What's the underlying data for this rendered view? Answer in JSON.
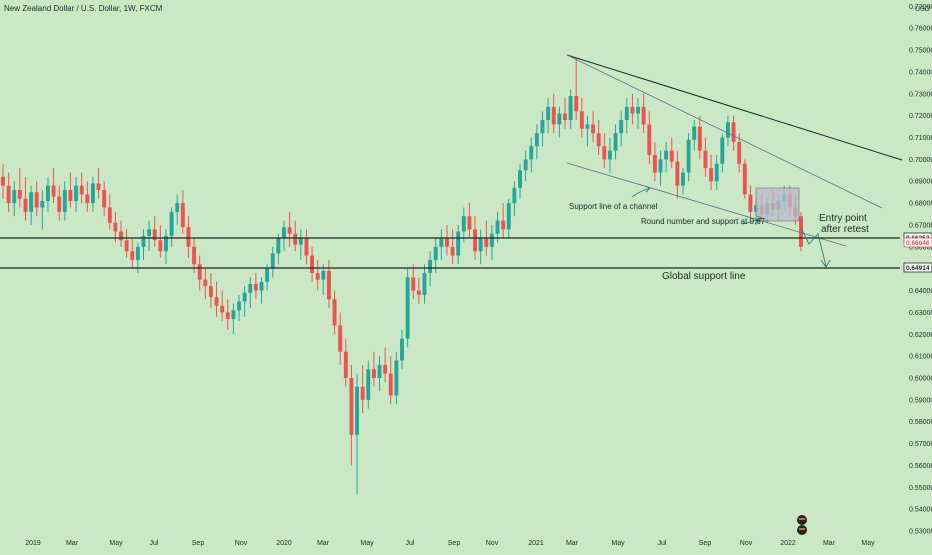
{
  "header": {
    "title": "New Zealand Dollar / U.S. Dollar, 1W, FXCM"
  },
  "colors": {
    "background": "#cbe8c6",
    "up": "#26a69a",
    "down": "#ef5350",
    "line": "#1b2a1f",
    "label_bg": "#ffffff"
  },
  "chart_data": {
    "type": "candlestick",
    "title": "New Zealand Dollar / U.S. Dollar, 1W, FXCM",
    "y_unit": "USD",
    "ylim": [
      0.53,
      0.772
    ],
    "y_ticks": [
      "0.77000",
      "0.76000",
      "0.75000",
      "0.74000",
      "0.73000",
      "0.72000",
      "0.71000",
      "0.70000",
      "0.69000",
      "0.68000",
      "0.67000",
      "0.66000",
      "0.65000",
      "0.64000",
      "0.63000",
      "0.62000",
      "0.61000",
      "0.60000",
      "0.59000",
      "0.58000",
      "0.57000",
      "0.56000",
      "0.55000",
      "0.54000",
      "0.53000"
    ],
    "x_ticks": [
      "2019",
      "Mar",
      "May",
      "Jul",
      "Sep",
      "Nov",
      "2020",
      "Mar",
      "May",
      "Jul",
      "Sep",
      "Nov",
      "2021",
      "Mar",
      "May",
      "Jul",
      "Sep",
      "Nov",
      "2022",
      "Mar",
      "May"
    ],
    "price_labels": [
      {
        "text": "0.66253",
        "value": 0.66253,
        "style": "dark"
      },
      {
        "text": "0.66046",
        "value": 0.66046,
        "style": "red"
      },
      {
        "text": "0.64914",
        "value": 0.64914,
        "style": "dark"
      }
    ],
    "annotations": [
      {
        "text": "Support line of a channel"
      },
      {
        "text": "Round number and support at 0.67"
      },
      {
        "text": "Entry point"
      },
      {
        "text": "after retest"
      },
      {
        "text": "Global support line"
      }
    ],
    "key_levels": [
      0.66253,
      0.64914
    ],
    "series": [
      {
        "o": 0.692,
        "h": 0.698,
        "l": 0.682,
        "c": 0.688
      },
      {
        "o": 0.688,
        "h": 0.694,
        "l": 0.676,
        "c": 0.68
      },
      {
        "o": 0.68,
        "h": 0.69,
        "l": 0.674,
        "c": 0.686
      },
      {
        "o": 0.686,
        "h": 0.696,
        "l": 0.678,
        "c": 0.682
      },
      {
        "o": 0.682,
        "h": 0.692,
        "l": 0.672,
        "c": 0.676
      },
      {
        "o": 0.676,
        "h": 0.688,
        "l": 0.67,
        "c": 0.685
      },
      {
        "o": 0.685,
        "h": 0.69,
        "l": 0.674,
        "c": 0.678
      },
      {
        "o": 0.678,
        "h": 0.686,
        "l": 0.668,
        "c": 0.681
      },
      {
        "o": 0.681,
        "h": 0.692,
        "l": 0.676,
        "c": 0.688
      },
      {
        "o": 0.688,
        "h": 0.696,
        "l": 0.68,
        "c": 0.683
      },
      {
        "o": 0.683,
        "h": 0.688,
        "l": 0.672,
        "c": 0.676
      },
      {
        "o": 0.676,
        "h": 0.69,
        "l": 0.672,
        "c": 0.686
      },
      {
        "o": 0.686,
        "h": 0.694,
        "l": 0.678,
        "c": 0.681
      },
      {
        "o": 0.681,
        "h": 0.692,
        "l": 0.676,
        "c": 0.688
      },
      {
        "o": 0.688,
        "h": 0.694,
        "l": 0.68,
        "c": 0.684
      },
      {
        "o": 0.684,
        "h": 0.69,
        "l": 0.676,
        "c": 0.68
      },
      {
        "o": 0.68,
        "h": 0.692,
        "l": 0.676,
        "c": 0.689
      },
      {
        "o": 0.689,
        "h": 0.696,
        "l": 0.682,
        "c": 0.686
      },
      {
        "o": 0.686,
        "h": 0.69,
        "l": 0.674,
        "c": 0.678
      },
      {
        "o": 0.678,
        "h": 0.684,
        "l": 0.668,
        "c": 0.671
      },
      {
        "o": 0.671,
        "h": 0.676,
        "l": 0.662,
        "c": 0.667
      },
      {
        "o": 0.667,
        "h": 0.672,
        "l": 0.66,
        "c": 0.663
      },
      {
        "o": 0.663,
        "h": 0.668,
        "l": 0.655,
        "c": 0.658
      },
      {
        "o": 0.658,
        "h": 0.664,
        "l": 0.65,
        "c": 0.654
      },
      {
        "o": 0.654,
        "h": 0.662,
        "l": 0.648,
        "c": 0.66
      },
      {
        "o": 0.66,
        "h": 0.668,
        "l": 0.654,
        "c": 0.665
      },
      {
        "o": 0.665,
        "h": 0.672,
        "l": 0.658,
        "c": 0.668
      },
      {
        "o": 0.668,
        "h": 0.674,
        "l": 0.66,
        "c": 0.663
      },
      {
        "o": 0.663,
        "h": 0.67,
        "l": 0.655,
        "c": 0.658
      },
      {
        "o": 0.658,
        "h": 0.668,
        "l": 0.652,
        "c": 0.665
      },
      {
        "o": 0.665,
        "h": 0.678,
        "l": 0.66,
        "c": 0.676
      },
      {
        "o": 0.676,
        "h": 0.684,
        "l": 0.67,
        "c": 0.68
      },
      {
        "o": 0.68,
        "h": 0.686,
        "l": 0.666,
        "c": 0.669
      },
      {
        "o": 0.669,
        "h": 0.674,
        "l": 0.655,
        "c": 0.66
      },
      {
        "o": 0.66,
        "h": 0.664,
        "l": 0.648,
        "c": 0.652
      },
      {
        "o": 0.652,
        "h": 0.656,
        "l": 0.64,
        "c": 0.645
      },
      {
        "o": 0.645,
        "h": 0.65,
        "l": 0.636,
        "c": 0.642
      },
      {
        "o": 0.642,
        "h": 0.648,
        "l": 0.632,
        "c": 0.637
      },
      {
        "o": 0.637,
        "h": 0.644,
        "l": 0.628,
        "c": 0.633
      },
      {
        "o": 0.633,
        "h": 0.64,
        "l": 0.626,
        "c": 0.63
      },
      {
        "o": 0.63,
        "h": 0.636,
        "l": 0.622,
        "c": 0.627
      },
      {
        "o": 0.627,
        "h": 0.634,
        "l": 0.62,
        "c": 0.631
      },
      {
        "o": 0.631,
        "h": 0.638,
        "l": 0.626,
        "c": 0.635
      },
      {
        "o": 0.635,
        "h": 0.642,
        "l": 0.628,
        "c": 0.639
      },
      {
        "o": 0.639,
        "h": 0.646,
        "l": 0.632,
        "c": 0.643
      },
      {
        "o": 0.643,
        "h": 0.648,
        "l": 0.636,
        "c": 0.64
      },
      {
        "o": 0.64,
        "h": 0.646,
        "l": 0.634,
        "c": 0.644
      },
      {
        "o": 0.644,
        "h": 0.652,
        "l": 0.64,
        "c": 0.65
      },
      {
        "o": 0.65,
        "h": 0.66,
        "l": 0.646,
        "c": 0.657
      },
      {
        "o": 0.657,
        "h": 0.666,
        "l": 0.652,
        "c": 0.664
      },
      {
        "o": 0.664,
        "h": 0.672,
        "l": 0.658,
        "c": 0.669
      },
      {
        "o": 0.669,
        "h": 0.676,
        "l": 0.66,
        "c": 0.666
      },
      {
        "o": 0.666,
        "h": 0.672,
        "l": 0.658,
        "c": 0.661
      },
      {
        "o": 0.661,
        "h": 0.668,
        "l": 0.654,
        "c": 0.664
      },
      {
        "o": 0.664,
        "h": 0.668,
        "l": 0.652,
        "c": 0.656
      },
      {
        "o": 0.656,
        "h": 0.66,
        "l": 0.644,
        "c": 0.648
      },
      {
        "o": 0.648,
        "h": 0.654,
        "l": 0.64,
        "c": 0.645
      },
      {
        "o": 0.645,
        "h": 0.652,
        "l": 0.638,
        "c": 0.649
      },
      {
        "o": 0.649,
        "h": 0.654,
        "l": 0.632,
        "c": 0.636
      },
      {
        "o": 0.636,
        "h": 0.64,
        "l": 0.62,
        "c": 0.624
      },
      {
        "o": 0.624,
        "h": 0.63,
        "l": 0.606,
        "c": 0.612
      },
      {
        "o": 0.612,
        "h": 0.618,
        "l": 0.596,
        "c": 0.6
      },
      {
        "o": 0.6,
        "h": 0.606,
        "l": 0.56,
        "c": 0.574
      },
      {
        "o": 0.574,
        "h": 0.602,
        "l": 0.547,
        "c": 0.596
      },
      {
        "o": 0.596,
        "h": 0.606,
        "l": 0.584,
        "c": 0.59
      },
      {
        "o": 0.59,
        "h": 0.608,
        "l": 0.586,
        "c": 0.604
      },
      {
        "o": 0.604,
        "h": 0.612,
        "l": 0.596,
        "c": 0.6
      },
      {
        "o": 0.6,
        "h": 0.61,
        "l": 0.594,
        "c": 0.606
      },
      {
        "o": 0.606,
        "h": 0.614,
        "l": 0.598,
        "c": 0.602
      },
      {
        "o": 0.602,
        "h": 0.61,
        "l": 0.588,
        "c": 0.592
      },
      {
        "o": 0.592,
        "h": 0.612,
        "l": 0.588,
        "c": 0.608
      },
      {
        "o": 0.608,
        "h": 0.622,
        "l": 0.604,
        "c": 0.618
      },
      {
        "o": 0.618,
        "h": 0.65,
        "l": 0.614,
        "c": 0.646
      },
      {
        "o": 0.646,
        "h": 0.652,
        "l": 0.636,
        "c": 0.64
      },
      {
        "o": 0.64,
        "h": 0.646,
        "l": 0.634,
        "c": 0.638
      },
      {
        "o": 0.638,
        "h": 0.652,
        "l": 0.634,
        "c": 0.648
      },
      {
        "o": 0.648,
        "h": 0.658,
        "l": 0.642,
        "c": 0.654
      },
      {
        "o": 0.654,
        "h": 0.664,
        "l": 0.648,
        "c": 0.66
      },
      {
        "o": 0.66,
        "h": 0.668,
        "l": 0.654,
        "c": 0.664
      },
      {
        "o": 0.664,
        "h": 0.67,
        "l": 0.656,
        "c": 0.66
      },
      {
        "o": 0.66,
        "h": 0.668,
        "l": 0.652,
        "c": 0.656
      },
      {
        "o": 0.656,
        "h": 0.67,
        "l": 0.652,
        "c": 0.667
      },
      {
        "o": 0.667,
        "h": 0.678,
        "l": 0.662,
        "c": 0.674
      },
      {
        "o": 0.674,
        "h": 0.68,
        "l": 0.664,
        "c": 0.668
      },
      {
        "o": 0.668,
        "h": 0.674,
        "l": 0.654,
        "c": 0.658
      },
      {
        "o": 0.658,
        "h": 0.668,
        "l": 0.652,
        "c": 0.664
      },
      {
        "o": 0.664,
        "h": 0.672,
        "l": 0.656,
        "c": 0.66
      },
      {
        "o": 0.66,
        "h": 0.67,
        "l": 0.654,
        "c": 0.666
      },
      {
        "o": 0.666,
        "h": 0.676,
        "l": 0.662,
        "c": 0.672
      },
      {
        "o": 0.672,
        "h": 0.68,
        "l": 0.664,
        "c": 0.668
      },
      {
        "o": 0.668,
        "h": 0.682,
        "l": 0.664,
        "c": 0.68
      },
      {
        "o": 0.68,
        "h": 0.69,
        "l": 0.674,
        "c": 0.687
      },
      {
        "o": 0.687,
        "h": 0.698,
        "l": 0.682,
        "c": 0.695
      },
      {
        "o": 0.695,
        "h": 0.704,
        "l": 0.69,
        "c": 0.7
      },
      {
        "o": 0.7,
        "h": 0.71,
        "l": 0.694,
        "c": 0.706
      },
      {
        "o": 0.706,
        "h": 0.716,
        "l": 0.7,
        "c": 0.712
      },
      {
        "o": 0.712,
        "h": 0.722,
        "l": 0.706,
        "c": 0.718
      },
      {
        "o": 0.718,
        "h": 0.728,
        "l": 0.712,
        "c": 0.724
      },
      {
        "o": 0.724,
        "h": 0.73,
        "l": 0.712,
        "c": 0.716
      },
      {
        "o": 0.716,
        "h": 0.724,
        "l": 0.71,
        "c": 0.721
      },
      {
        "o": 0.721,
        "h": 0.728,
        "l": 0.714,
        "c": 0.718
      },
      {
        "o": 0.718,
        "h": 0.732,
        "l": 0.714,
        "c": 0.729
      },
      {
        "o": 0.729,
        "h": 0.746,
        "l": 0.718,
        "c": 0.722
      },
      {
        "o": 0.722,
        "h": 0.728,
        "l": 0.71,
        "c": 0.714
      },
      {
        "o": 0.714,
        "h": 0.72,
        "l": 0.706,
        "c": 0.716
      },
      {
        "o": 0.716,
        "h": 0.722,
        "l": 0.708,
        "c": 0.712
      },
      {
        "o": 0.712,
        "h": 0.718,
        "l": 0.702,
        "c": 0.706
      },
      {
        "o": 0.706,
        "h": 0.712,
        "l": 0.696,
        "c": 0.7
      },
      {
        "o": 0.7,
        "h": 0.71,
        "l": 0.694,
        "c": 0.704
      },
      {
        "o": 0.704,
        "h": 0.716,
        "l": 0.7,
        "c": 0.712
      },
      {
        "o": 0.712,
        "h": 0.722,
        "l": 0.706,
        "c": 0.718
      },
      {
        "o": 0.718,
        "h": 0.728,
        "l": 0.712,
        "c": 0.724
      },
      {
        "o": 0.724,
        "h": 0.73,
        "l": 0.716,
        "c": 0.721
      },
      {
        "o": 0.721,
        "h": 0.728,
        "l": 0.714,
        "c": 0.724
      },
      {
        "o": 0.724,
        "h": 0.73,
        "l": 0.712,
        "c": 0.716
      },
      {
        "o": 0.716,
        "h": 0.722,
        "l": 0.698,
        "c": 0.702
      },
      {
        "o": 0.702,
        "h": 0.708,
        "l": 0.69,
        "c": 0.694
      },
      {
        "o": 0.694,
        "h": 0.704,
        "l": 0.688,
        "c": 0.7
      },
      {
        "o": 0.7,
        "h": 0.708,
        "l": 0.694,
        "c": 0.704
      },
      {
        "o": 0.704,
        "h": 0.71,
        "l": 0.696,
        "c": 0.699
      },
      {
        "o": 0.699,
        "h": 0.704,
        "l": 0.682,
        "c": 0.688
      },
      {
        "o": 0.688,
        "h": 0.696,
        "l": 0.684,
        "c": 0.694
      },
      {
        "o": 0.694,
        "h": 0.712,
        "l": 0.69,
        "c": 0.709
      },
      {
        "o": 0.709,
        "h": 0.718,
        "l": 0.704,
        "c": 0.715
      },
      {
        "o": 0.715,
        "h": 0.72,
        "l": 0.7,
        "c": 0.704
      },
      {
        "o": 0.704,
        "h": 0.71,
        "l": 0.692,
        "c": 0.696
      },
      {
        "o": 0.696,
        "h": 0.702,
        "l": 0.686,
        "c": 0.69
      },
      {
        "o": 0.69,
        "h": 0.702,
        "l": 0.686,
        "c": 0.698
      },
      {
        "o": 0.698,
        "h": 0.712,
        "l": 0.694,
        "c": 0.71
      },
      {
        "o": 0.71,
        "h": 0.72,
        "l": 0.706,
        "c": 0.717
      },
      {
        "o": 0.717,
        "h": 0.72,
        "l": 0.704,
        "c": 0.708
      },
      {
        "o": 0.708,
        "h": 0.712,
        "l": 0.694,
        "c": 0.698
      },
      {
        "o": 0.698,
        "h": 0.7,
        "l": 0.682,
        "c": 0.684
      },
      {
        "o": 0.684,
        "h": 0.688,
        "l": 0.672,
        "c": 0.676
      },
      {
        "o": 0.676,
        "h": 0.682,
        "l": 0.67,
        "c": 0.679
      },
      {
        "o": 0.679,
        "h": 0.684,
        "l": 0.672,
        "c": 0.675
      },
      {
        "o": 0.675,
        "h": 0.682,
        "l": 0.671,
        "c": 0.68
      },
      {
        "o": 0.68,
        "h": 0.686,
        "l": 0.674,
        "c": 0.677
      },
      {
        "o": 0.677,
        "h": 0.684,
        "l": 0.672,
        "c": 0.681
      },
      {
        "o": 0.681,
        "h": 0.688,
        "l": 0.676,
        "c": 0.684
      },
      {
        "o": 0.684,
        "h": 0.688,
        "l": 0.674,
        "c": 0.678
      },
      {
        "o": 0.678,
        "h": 0.684,
        "l": 0.67,
        "c": 0.674
      },
      {
        "o": 0.674,
        "h": 0.676,
        "l": 0.658,
        "c": 0.66
      }
    ]
  }
}
